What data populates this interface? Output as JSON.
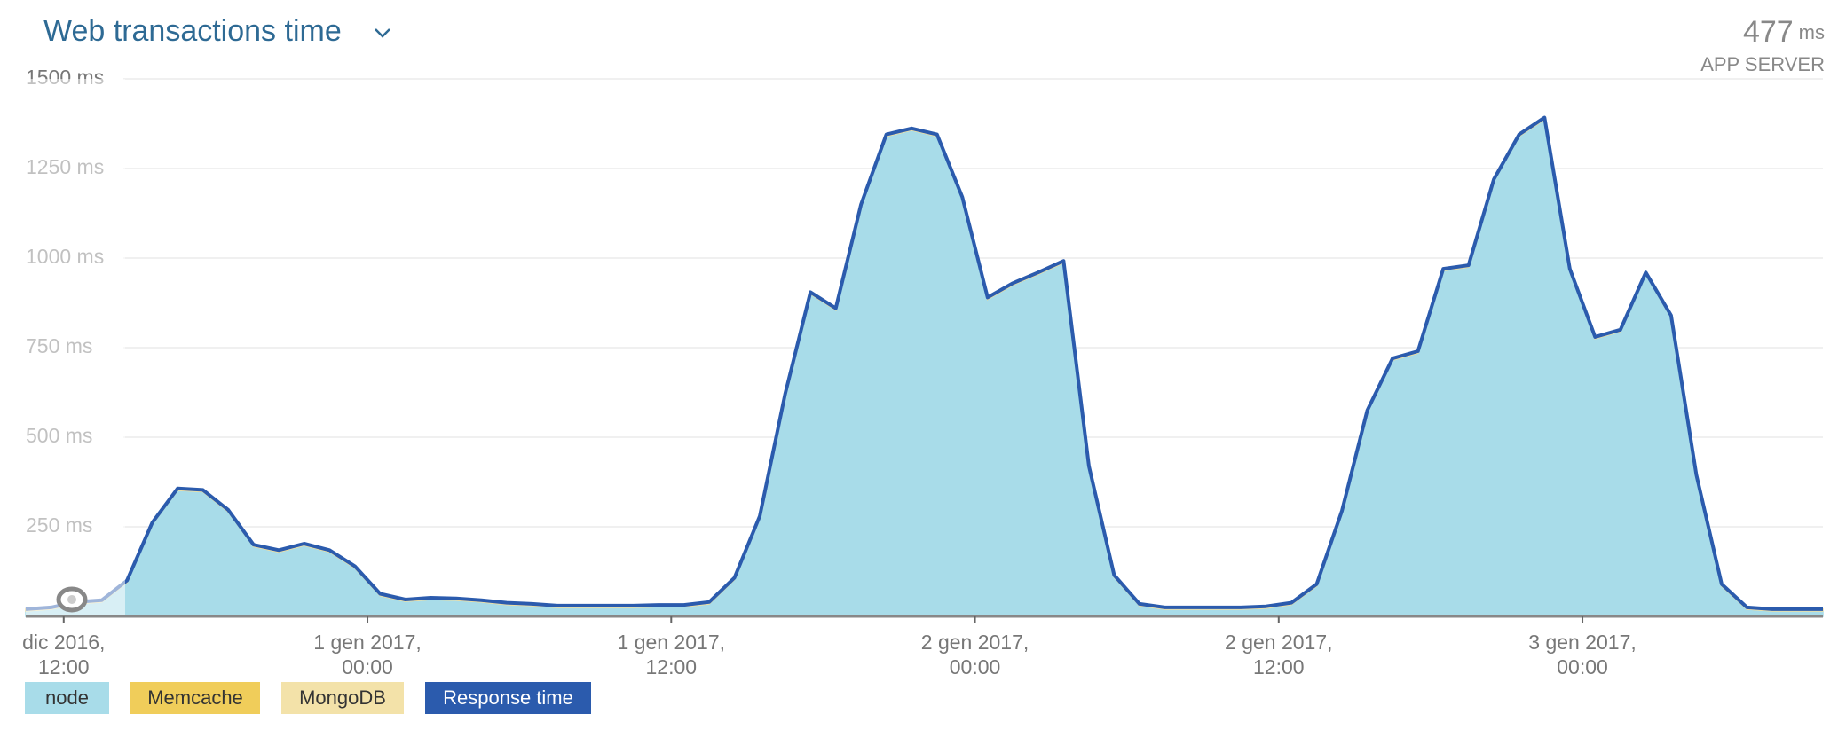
{
  "chart_data": {
    "type": "stacked-area",
    "title": "Web transactions time",
    "summary": {
      "value": 477,
      "unit": "ms",
      "label": "APP SERVER"
    },
    "x": [
      -1.5,
      -0.5,
      0.5,
      1.5,
      2.5,
      3.5,
      4.5,
      5.5,
      6.5,
      7.5,
      8.5,
      9.5,
      10.5,
      11.5,
      12.5,
      13.5,
      14.5,
      15.5,
      16.5,
      17.5,
      18.5,
      19.5,
      20.5,
      21.5,
      22.5,
      23.5,
      24.5,
      25.5,
      26.5,
      27.5,
      28.5,
      29.5,
      30.5,
      31.5,
      32.5,
      33.5,
      34.5,
      35.5,
      36.5,
      37.5,
      38.5,
      39.5,
      40.5,
      41.5,
      42.5,
      43.5,
      44.5,
      45.5,
      46.5,
      47.5,
      48.5,
      49.5,
      50.5,
      51.5,
      52.5,
      53.5,
      54.5,
      55.5,
      56.5,
      57.5,
      58.5,
      59.5,
      60.5,
      61.5,
      62.5,
      63.5,
      64.5,
      65.5,
      66.5,
      67.5,
      68.5,
      69.5
    ],
    "xlim": [
      -1.5,
      69.5
    ],
    "xticks": [
      {
        "value": 0,
        "label": [
          "dic 2016,",
          "12:00"
        ]
      },
      {
        "value": 12,
        "label": [
          "1 gen 2017,",
          "00:00"
        ]
      },
      {
        "value": 24,
        "label": [
          "1 gen 2017,",
          "12:00"
        ]
      },
      {
        "value": 36,
        "label": [
          "2 gen 2017,",
          "00:00"
        ]
      },
      {
        "value": 48,
        "label": [
          "2 gen 2017,",
          "12:00"
        ]
      },
      {
        "value": 60,
        "label": [
          "3 gen 2017,",
          "00:00"
        ]
      }
    ],
    "ylim": [
      0,
      1500
    ],
    "yticks": [
      {
        "value": 250,
        "label": "250 ms"
      },
      {
        "value": 500,
        "label": "500 ms"
      },
      {
        "value": 750,
        "label": "750 ms"
      },
      {
        "value": 1000,
        "label": "1000 ms"
      },
      {
        "value": 1250,
        "label": "1250 ms"
      },
      {
        "value": 1500,
        "label": "1500 ms"
      }
    ],
    "grid": true,
    "legend": "bottom-left",
    "series": [
      {
        "name": "node",
        "color": "#a8dce9",
        "kind": "area",
        "values": [
          15,
          20,
          35,
          40,
          95,
          257,
          352,
          348,
          292,
          195,
          180,
          198,
          180,
          135,
          58,
          42,
          47,
          45,
          40,
          33,
          30,
          25,
          25,
          25,
          25,
          27,
          27,
          35,
          103,
          275,
          615,
          900,
          855,
          1145,
          1340,
          1357,
          1340,
          1165,
          885,
          925,
          955,
          987,
          415,
          110,
          30,
          20,
          20,
          20,
          20,
          23,
          33,
          85,
          290,
          570,
          715,
          735,
          965,
          975,
          1215,
          1340,
          1387,
          965,
          775,
          795,
          955,
          835,
          390,
          85,
          20,
          15,
          15,
          15
        ]
      },
      {
        "name": "Memcache",
        "color": "#f0cd5a",
        "kind": "area",
        "values": [
          0,
          0,
          0,
          0,
          0,
          0,
          0,
          0,
          0,
          0,
          0,
          0,
          0,
          0,
          0,
          0,
          0,
          0,
          0,
          0,
          0,
          0,
          0,
          0,
          0,
          0,
          0,
          0,
          0,
          0,
          0,
          0,
          0,
          0,
          0,
          0,
          0,
          0,
          0,
          0,
          0,
          0,
          0,
          0,
          0,
          0,
          0,
          0,
          0,
          0,
          0,
          0,
          0,
          0,
          0,
          0,
          0,
          0,
          0,
          0,
          0,
          0,
          0,
          0,
          0,
          0,
          0,
          0,
          0,
          0,
          0,
          0
        ]
      },
      {
        "name": "MongoDB",
        "color": "#f3e2a9",
        "kind": "area",
        "values": [
          5,
          5,
          5,
          5,
          5,
          5,
          5,
          5,
          5,
          5,
          5,
          5,
          5,
          5,
          5,
          5,
          5,
          5,
          5,
          5,
          5,
          5,
          5,
          5,
          5,
          5,
          5,
          5,
          5,
          5,
          5,
          5,
          5,
          5,
          5,
          5,
          5,
          5,
          5,
          5,
          5,
          5,
          5,
          5,
          5,
          5,
          5,
          5,
          5,
          5,
          5,
          5,
          5,
          5,
          5,
          5,
          5,
          5,
          5,
          5,
          5,
          5,
          5,
          5,
          5,
          5,
          5,
          5,
          5,
          5,
          5,
          5
        ]
      },
      {
        "name": "Response time",
        "color": "#2b5bad",
        "kind": "line",
        "values": [
          20,
          25,
          40,
          45,
          100,
          262,
          357,
          353,
          297,
          200,
          185,
          203,
          185,
          140,
          63,
          47,
          52,
          50,
          45,
          38,
          35,
          30,
          30,
          30,
          30,
          32,
          32,
          40,
          108,
          280,
          620,
          905,
          860,
          1150,
          1345,
          1362,
          1345,
          1170,
          890,
          930,
          960,
          992,
          420,
          115,
          35,
          25,
          25,
          25,
          25,
          28,
          38,
          90,
          295,
          575,
          720,
          740,
          970,
          980,
          1220,
          1345,
          1392,
          970,
          780,
          800,
          960,
          840,
          395,
          90,
          25,
          20,
          20,
          20
        ]
      }
    ]
  }
}
